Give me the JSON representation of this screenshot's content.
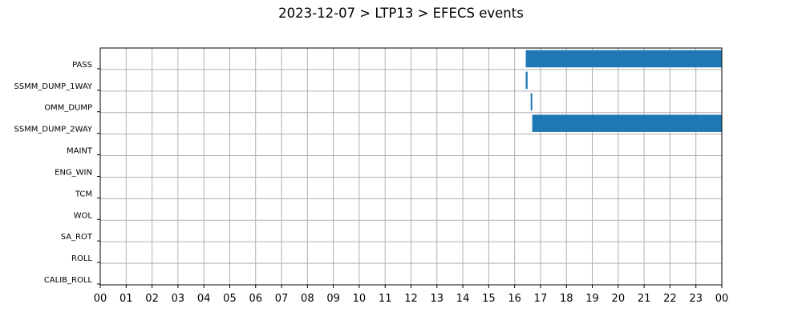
{
  "chart_data": {
    "type": "bar",
    "orientation": "horizontal-timeline",
    "title": "2023-12-07 > LTP13 > EFECS events",
    "xlabel": "",
    "ylabel": "",
    "xlim": [
      0,
      24
    ],
    "grid": true,
    "colors": {
      "bar": "#1f77b4",
      "grid": "#b0b0b0",
      "axis": "#000000"
    },
    "x_tick_labels": [
      "00",
      "01",
      "02",
      "03",
      "04",
      "05",
      "06",
      "07",
      "08",
      "09",
      "10",
      "11",
      "12",
      "13",
      "14",
      "15",
      "16",
      "17",
      "18",
      "19",
      "20",
      "21",
      "22",
      "23",
      "00"
    ],
    "categories": [
      "PASS",
      "SSMM_DUMP_1WAY",
      "OMM_DUMP",
      "SSMM_DUMP_2WAY",
      "MAINT",
      "ENG_WIN",
      "TCM",
      "WOL",
      "SA_ROT",
      "ROLL",
      "CALIB_ROLL"
    ],
    "events": [
      {
        "category": "PASS",
        "start": 16.43,
        "end": 24.0
      },
      {
        "category": "SSMM_DUMP_1WAY",
        "start": 16.43,
        "end": 16.5
      },
      {
        "category": "OMM_DUMP",
        "start": 16.62,
        "end": 16.68
      },
      {
        "category": "SSMM_DUMP_2WAY",
        "start": 16.68,
        "end": 24.0
      }
    ]
  }
}
